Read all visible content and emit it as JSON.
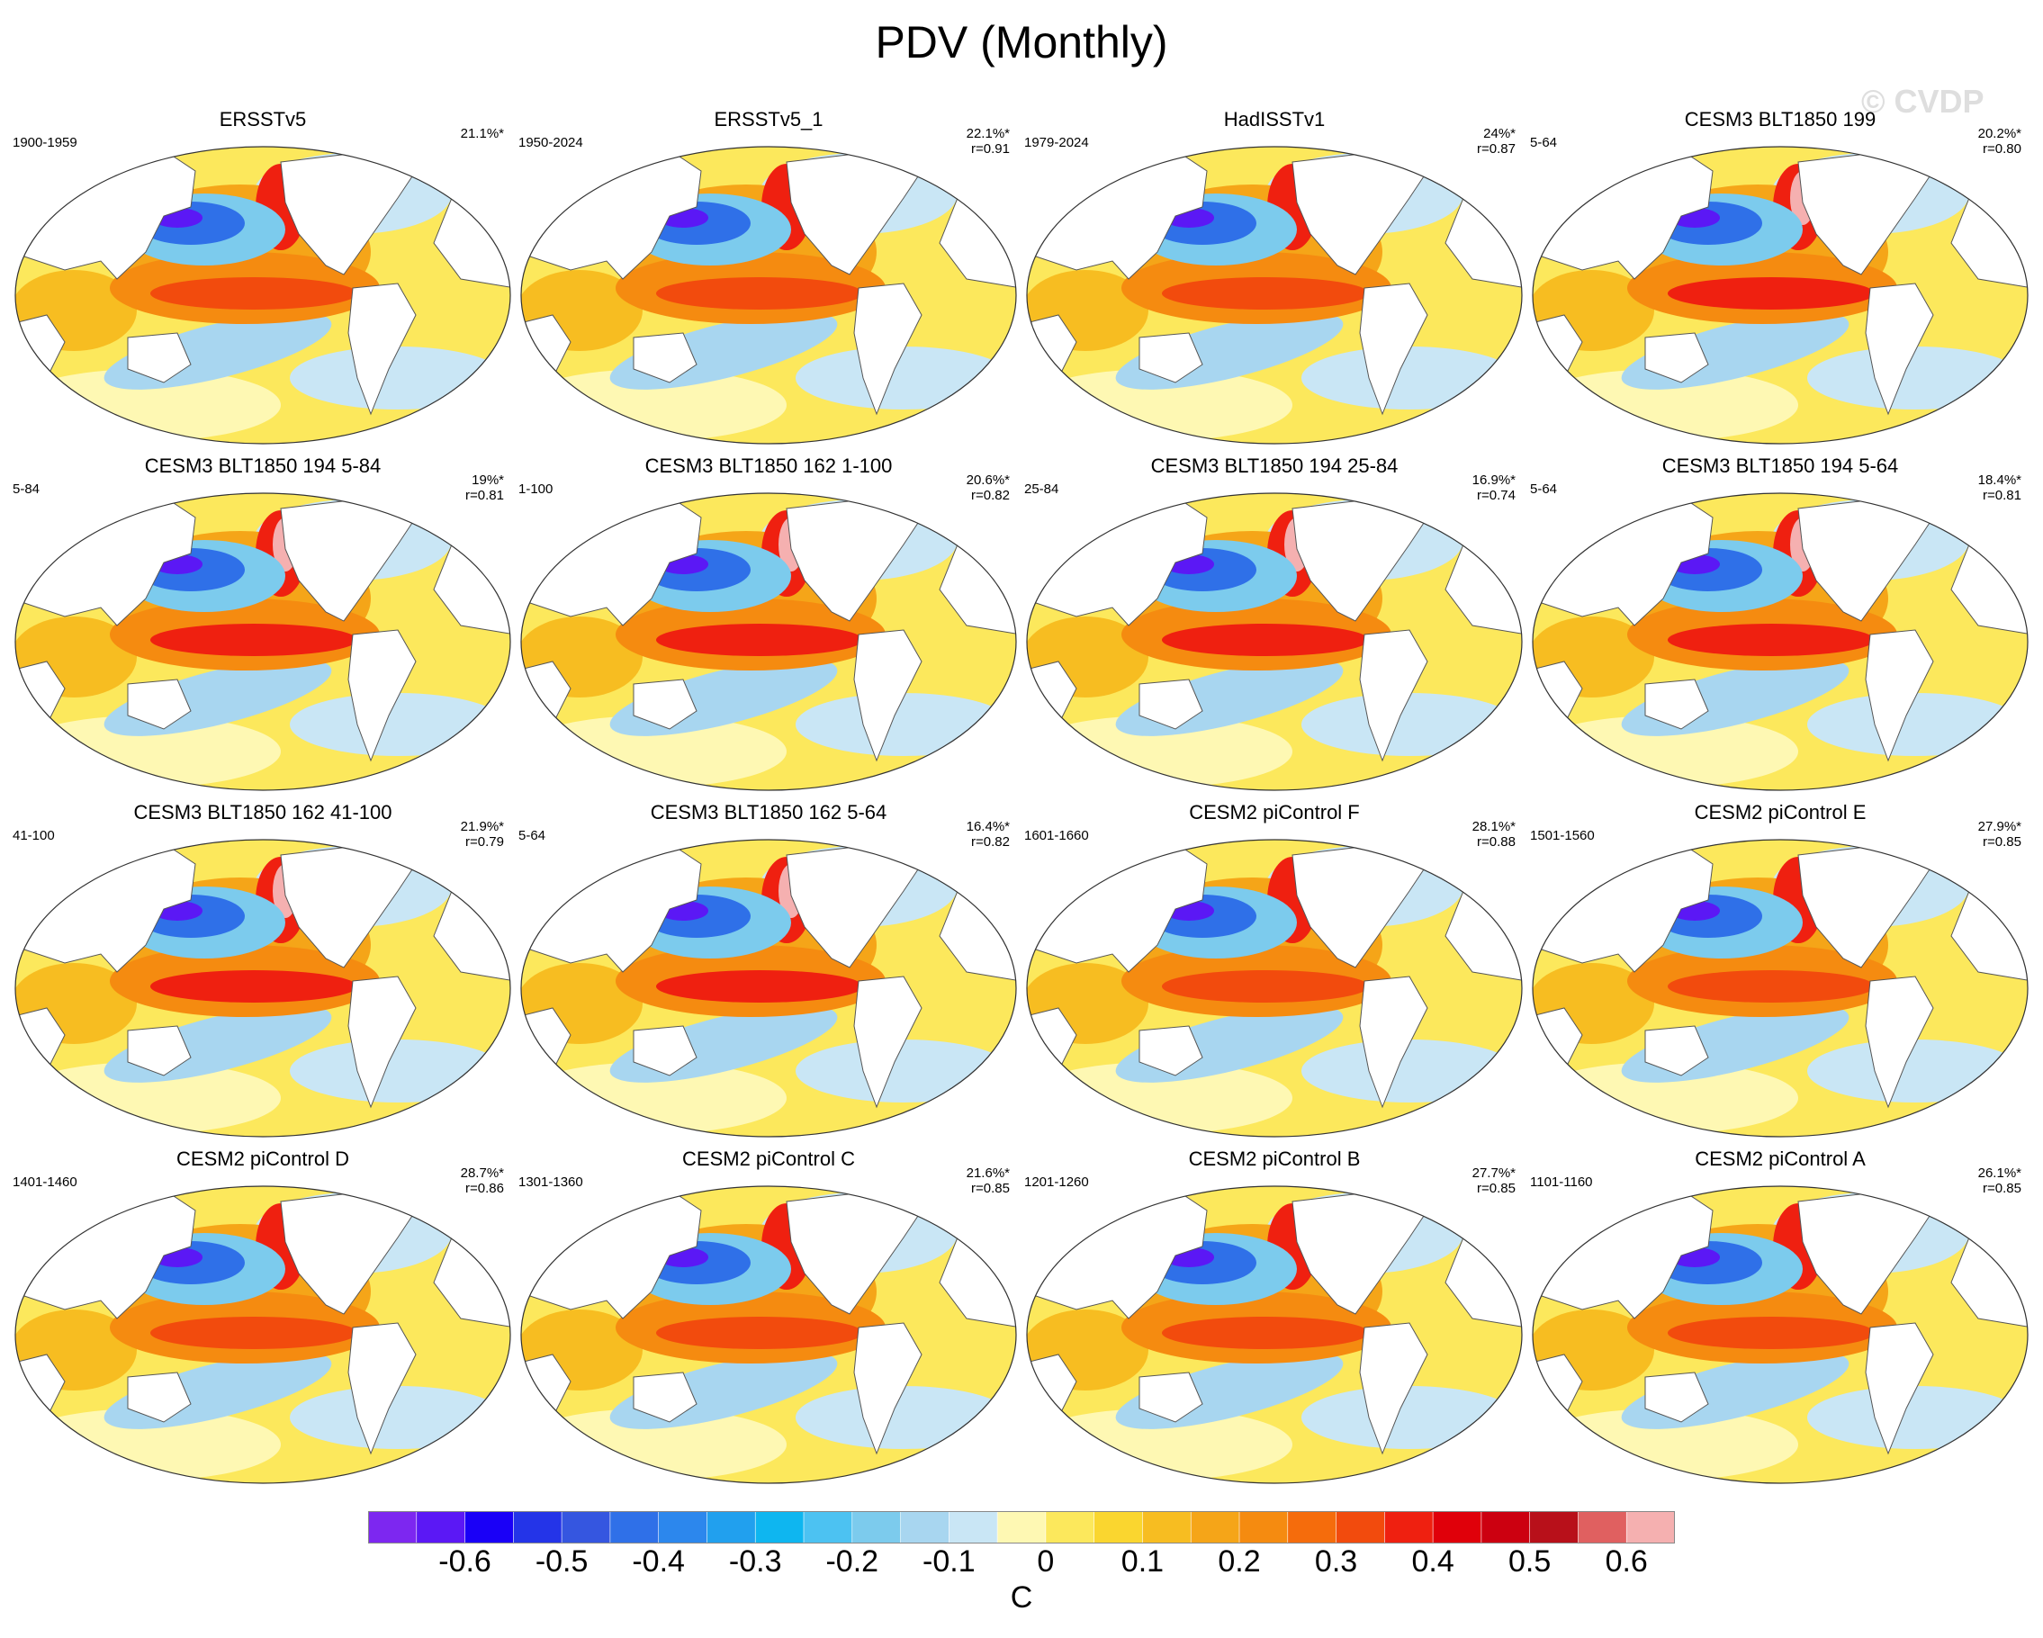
{
  "chart_data": {
    "type": "heatmap",
    "title": "PDV (Monthly)",
    "watermark": "© CVDP",
    "units": "C",
    "colorbar": {
      "min": -0.7,
      "max": 0.7,
      "step": 0.05,
      "ticks": [
        "-0.6",
        "-0.5",
        "-0.4",
        "-0.3",
        "-0.2",
        "-0.1",
        "0",
        "0.1",
        "0.2",
        "0.3",
        "0.4",
        "0.5",
        "0.6"
      ],
      "colors": [
        "#7d27f0",
        "#5b18f5",
        "#1a00f7",
        "#2434e8",
        "#3556e0",
        "#2f70e8",
        "#2c87ed",
        "#21a0ee",
        "#0eb6f0",
        "#4cc2f2",
        "#7ccbed",
        "#a8d6f0",
        "#c9e6f5",
        "#fef8b3",
        "#fce85c",
        "#fad62f",
        "#f7bd21",
        "#f5a518",
        "#f58b10",
        "#f56c0c",
        "#f24b0d",
        "#ef2010",
        "#e0000a",
        "#cc0010",
        "#b8101a",
        "#e06060",
        "#f5b0b0"
      ]
    },
    "panels": [
      {
        "title": "ERSSTv5",
        "period": "1900-1959",
        "stat1": "21.1%*",
        "stat2": ""
      },
      {
        "title": "ERSSTv5_1",
        "period": "1950-2024",
        "stat1": "22.1%*",
        "stat2": "r=0.91"
      },
      {
        "title": "HadISSTv1",
        "period": "1979-2024",
        "stat1": "24%*",
        "stat2": "r=0.87"
      },
      {
        "title": "CESM3 BLT1850 199",
        "period": "5-64",
        "stat1": "20.2%*",
        "stat2": "r=0.80"
      },
      {
        "title": "CESM3 BLT1850 194 5-84",
        "period": "5-84",
        "stat1": "19%*",
        "stat2": "r=0.81"
      },
      {
        "title": "CESM3 BLT1850 162 1-100",
        "period": "1-100",
        "stat1": "20.6%*",
        "stat2": "r=0.82"
      },
      {
        "title": "CESM3 BLT1850 194 25-84",
        "period": "25-84",
        "stat1": "16.9%*",
        "stat2": "r=0.74"
      },
      {
        "title": "CESM3 BLT1850 194 5-64",
        "period": "5-64",
        "stat1": "18.4%*",
        "stat2": "r=0.81"
      },
      {
        "title": "CESM3 BLT1850 162 41-100",
        "period": "41-100",
        "stat1": "21.9%*",
        "stat2": "r=0.79"
      },
      {
        "title": "CESM3 BLT1850 162 5-64",
        "period": "5-64",
        "stat1": "16.4%*",
        "stat2": "r=0.82"
      },
      {
        "title": "CESM2 piControl F",
        "period": "1601-1660",
        "stat1": "28.1%*",
        "stat2": "r=0.88"
      },
      {
        "title": "CESM2 piControl E",
        "period": "1501-1560",
        "stat1": "27.9%*",
        "stat2": "r=0.85"
      },
      {
        "title": "CESM2 piControl D",
        "period": "1401-1460",
        "stat1": "28.7%*",
        "stat2": "r=0.86"
      },
      {
        "title": "CESM2 piControl C",
        "period": "1301-1360",
        "stat1": "21.6%*",
        "stat2": "r=0.85"
      },
      {
        "title": "CESM2 piControl B",
        "period": "1201-1260",
        "stat1": "27.7%*",
        "stat2": "r=0.85"
      },
      {
        "title": "CESM2 piControl A",
        "period": "1101-1160",
        "stat1": "26.1%*",
        "stat2": "r=0.85"
      }
    ]
  }
}
